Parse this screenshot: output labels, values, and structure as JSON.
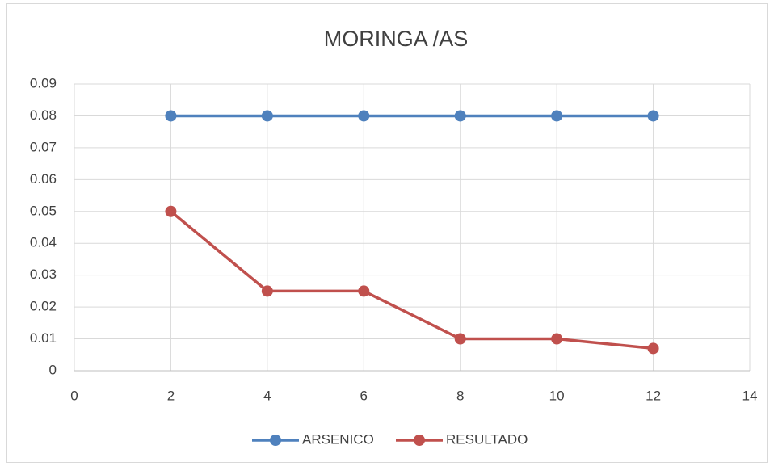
{
  "chart_data": {
    "type": "line",
    "title": "MORINGA /AS",
    "x": [
      2,
      4,
      6,
      8,
      10,
      12
    ],
    "series": [
      {
        "name": "ARSENICO",
        "color": "#4f81bd",
        "values": [
          0.08,
          0.08,
          0.08,
          0.08,
          0.08,
          0.08
        ]
      },
      {
        "name": "RESULTADO",
        "color": "#c0504d",
        "values": [
          0.05,
          0.025,
          0.025,
          0.01,
          0.01,
          0.007
        ]
      }
    ],
    "xlim": [
      0,
      14
    ],
    "xticks": [
      0,
      2,
      4,
      6,
      8,
      10,
      12,
      14
    ],
    "ylim": [
      0,
      0.09
    ],
    "yticks": [
      0,
      0.01,
      0.02,
      0.03,
      0.04,
      0.05,
      0.06,
      0.07,
      0.08,
      0.09
    ],
    "grid": true,
    "legend": "bottom",
    "markers": true
  }
}
